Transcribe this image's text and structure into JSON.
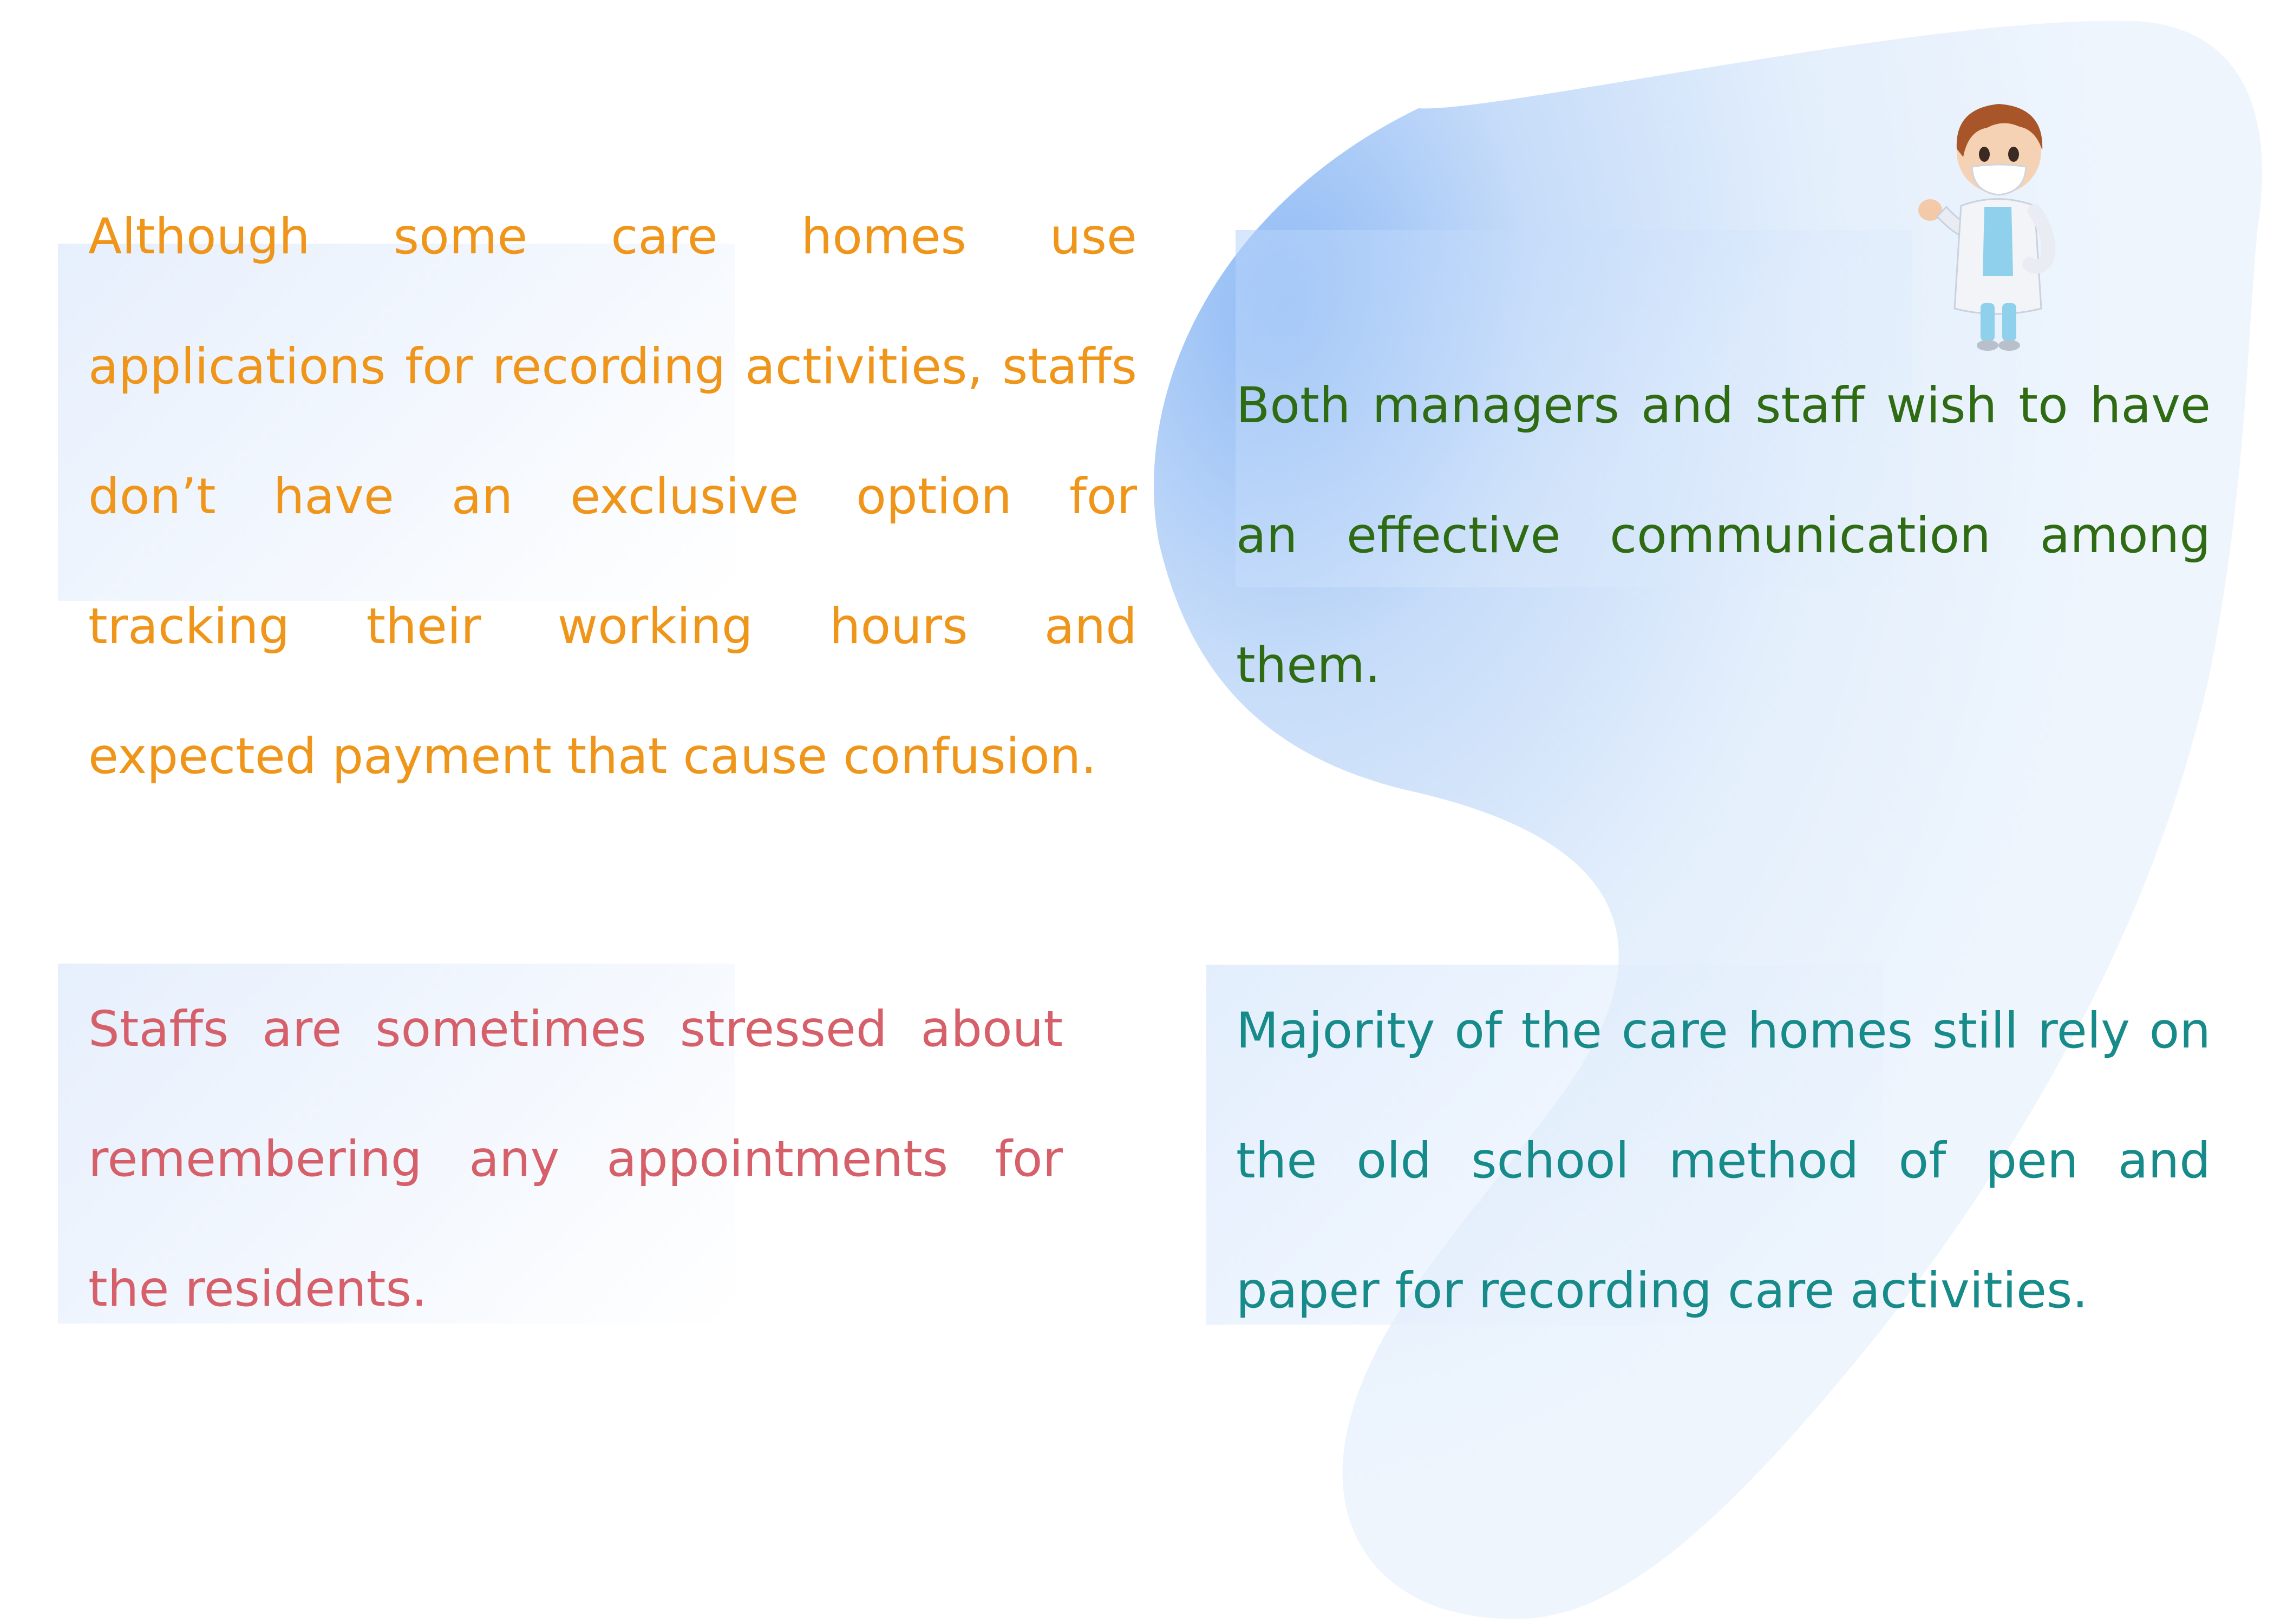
{
  "colors": {
    "background": "#ffffff",
    "blob": "#dbe9fb",
    "blob_accent": "#8fbaf5",
    "orange_text": "#ef961a",
    "green_text": "#2f6b12",
    "pink_text": "#d6606a",
    "teal_text": "#178a8a"
  },
  "illustration": {
    "icon": "doctor-character-icon"
  },
  "statements": {
    "tracking": "Although some care homes use applications for recording activities, staffs don’t have an exclusive option for tracking their working hours and expected payment that cause confusion.",
    "communication": "Both managers and staff wish to have an effective communication among them.",
    "appointments": "Staffs are sometimes stressed about remembering any appointments for the residents.",
    "pen_paper": "Majority of the care homes still rely on the old school method of pen and paper for recording care activities."
  }
}
